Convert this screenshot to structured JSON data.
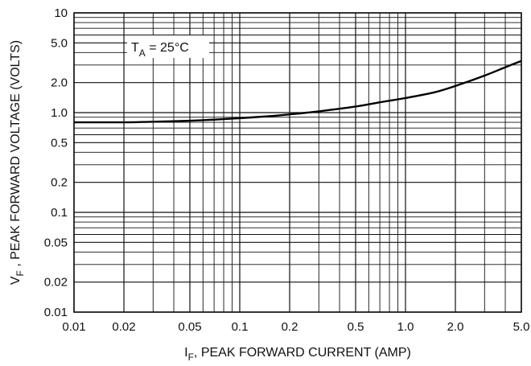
{
  "chart_data": {
    "type": "line",
    "x_scale": "log",
    "y_scale": "log",
    "xlim": [
      0.01,
      5.0
    ],
    "ylim": [
      0.01,
      10
    ],
    "grid": true,
    "x_ticks": [
      {
        "value": 0.01,
        "label": "0.01"
      },
      {
        "value": 0.02,
        "label": "0.02"
      },
      {
        "value": 0.05,
        "label": "0.05"
      },
      {
        "value": 0.1,
        "label": "0.1"
      },
      {
        "value": 0.2,
        "label": "0.2"
      },
      {
        "value": 0.5,
        "label": "0.5"
      },
      {
        "value": 1.0,
        "label": "1.0"
      },
      {
        "value": 2.0,
        "label": "2.0"
      },
      {
        "value": 5.0,
        "label": "5.0"
      }
    ],
    "y_ticks": [
      {
        "value": 0.01,
        "label": "0.01"
      },
      {
        "value": 0.02,
        "label": "0.02"
      },
      {
        "value": 0.05,
        "label": "0.05"
      },
      {
        "value": 0.1,
        "label": "0.1"
      },
      {
        "value": 0.2,
        "label": "0.2"
      },
      {
        "value": 0.5,
        "label": "0.5"
      },
      {
        "value": 1.0,
        "label": "1.0"
      },
      {
        "value": 2.0,
        "label": "2.0"
      },
      {
        "value": 5.0,
        "label": "5.0"
      },
      {
        "value": 10,
        "label": "10"
      }
    ],
    "xlabel": {
      "symbol": "I",
      "subscript": "F",
      "text": ", PEAK FORWARD CURRENT (AMP)"
    },
    "ylabel": {
      "symbol": "V",
      "subscript": "F",
      "text": " , PEAK FORWARD VOLTAGE (VOLTS)"
    },
    "annotation": {
      "symbol": "T",
      "subscript": "A",
      "text": " = 25°C"
    },
    "series": [
      {
        "x": [
          0.01,
          0.02,
          0.03,
          0.05,
          0.07,
          0.1,
          0.15,
          0.2,
          0.3,
          0.5,
          0.7,
          1.0,
          1.5,
          2.0,
          3.0,
          4.0,
          5.0
        ],
        "y": [
          0.8,
          0.8,
          0.81,
          0.83,
          0.85,
          0.88,
          0.92,
          0.96,
          1.03,
          1.15,
          1.27,
          1.4,
          1.6,
          1.85,
          2.35,
          2.85,
          3.3
        ]
      }
    ],
    "colors": {
      "line": "#000000",
      "grid": "#111111",
      "background": "#ffffff"
    }
  }
}
